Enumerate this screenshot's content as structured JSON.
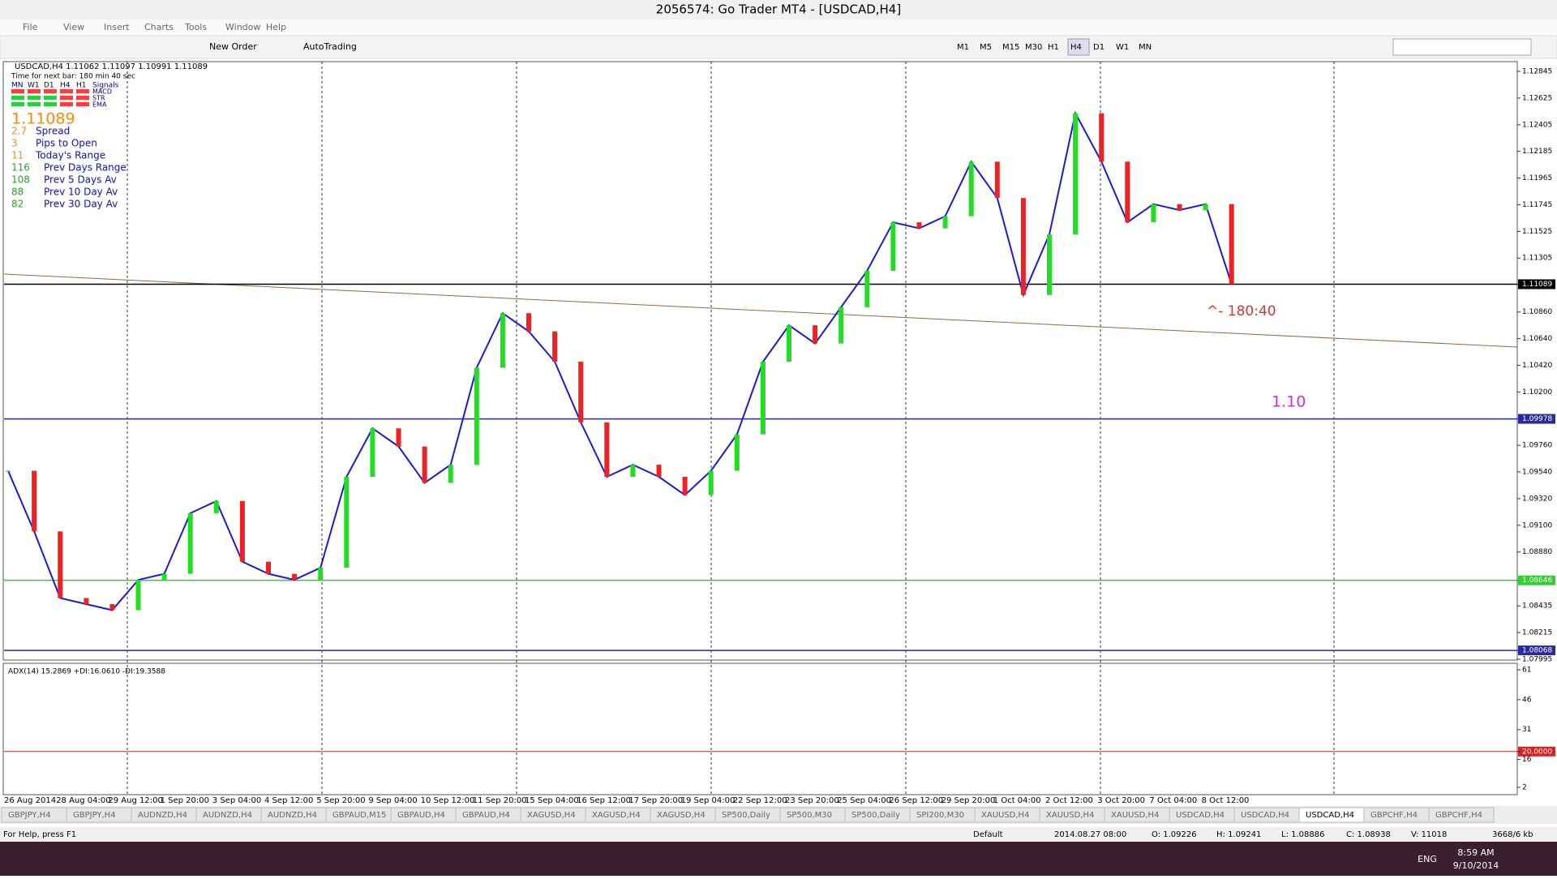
{
  "window": {
    "title": "2056574: Go Trader MT4 - [USDCAD,H4]"
  },
  "menu": [
    "File",
    "View",
    "Insert",
    "Charts",
    "Tools",
    "Window",
    "Help"
  ],
  "toolbar": {
    "new_order": "New Order",
    "autotrading": "AutoTrading",
    "timeframes": [
      "M1",
      "M5",
      "M15",
      "M30",
      "H1",
      "H4",
      "D1",
      "W1",
      "MN"
    ]
  },
  "chart": {
    "symbol_line": "USDCAD,H4  1.11062 1.11097 1.10991 1.11089",
    "timer": "Time for next bar: 180 min 40 sec",
    "signal_header": [
      "MN",
      "W1",
      "D1",
      "H4",
      "H1",
      "Signals"
    ],
    "signal_rows": [
      "MACD",
      "STR",
      "EMA"
    ],
    "price": "1.11089",
    "stats": [
      [
        "2.7",
        "Spread"
      ],
      [
        "3",
        "Pips to Open"
      ],
      [
        "11",
        "Today's Range"
      ],
      [
        "116",
        "Prev Days Range"
      ],
      [
        "108",
        "Prev 5 Days Av"
      ],
      [
        "88",
        "Prev 10 Day Av"
      ],
      [
        "82",
        "Prev 30 Day Av"
      ]
    ],
    "annotation_timer": "^- 180:40",
    "annotation_level": "1.10",
    "price_axis": [
      {
        "value": 1.12845,
        "label": "1.12845"
      },
      {
        "value": 1.12625,
        "label": "1.12625"
      },
      {
        "value": 1.12405,
        "label": "1.12405"
      },
      {
        "value": 1.12185,
        "label": "1.12185"
      },
      {
        "value": 1.11965,
        "label": "1.11965"
      },
      {
        "value": 1.11745,
        "label": "1.11745"
      },
      {
        "value": 1.11525,
        "label": "1.11525"
      },
      {
        "value": 1.11305,
        "label": "1.11305"
      },
      {
        "value": 1.11089,
        "label": "1.11089",
        "line": "#000000"
      },
      {
        "value": 1.1086,
        "label": "1.10860"
      },
      {
        "value": 1.1064,
        "label": "1.10640"
      },
      {
        "value": 1.1042,
        "label": "1.10420"
      },
      {
        "value": 1.102,
        "label": "1.10200"
      },
      {
        "value": 1.09978,
        "label": "1.09978",
        "line": "#2a2aa0"
      },
      {
        "value": 1.0976,
        "label": "1.09760"
      },
      {
        "value": 1.0954,
        "label": "1.09540"
      },
      {
        "value": 1.0932,
        "label": "1.09320"
      },
      {
        "value": 1.091,
        "label": "1.09100"
      },
      {
        "value": 1.0888,
        "label": "1.08880"
      },
      {
        "value": 1.08646,
        "label": "1.08646",
        "line": "#33cc33"
      },
      {
        "value": 1.08435,
        "label": "1.08435"
      },
      {
        "value": 1.08215,
        "label": "1.08215"
      },
      {
        "value": 1.08068,
        "label": "1.08068",
        "line": "#2a2aa0"
      },
      {
        "value": 1.07995,
        "label": "1.07995"
      }
    ],
    "ylim": [
      1.07995,
      1.12845
    ],
    "close_prices": [
      1.0955,
      1.0905,
      1.085,
      1.0845,
      1.084,
      1.0865,
      1.087,
      1.092,
      1.093,
      1.088,
      1.087,
      1.0865,
      1.0875,
      1.095,
      1.099,
      1.0975,
      1.0945,
      1.096,
      1.104,
      1.1085,
      1.107,
      1.1045,
      1.0995,
      1.095,
      1.096,
      1.095,
      1.0935,
      1.0955,
      1.0985,
      1.1045,
      1.1075,
      1.106,
      1.109,
      1.112,
      1.116,
      1.1155,
      1.1165,
      1.121,
      1.118,
      1.11,
      1.115,
      1.125,
      1.121,
      1.116,
      1.1175,
      1.117,
      1.1175,
      1.11089
    ],
    "time_axis": [
      "26 Aug 2014",
      "28 Aug 04:00",
      "29 Aug 12:00",
      "1 Sep 20:00",
      "3 Sep 04:00",
      "4 Sep 12:00",
      "5 Sep 20:00",
      "9 Sep 04:00",
      "10 Sep 12:00",
      "11 Sep 20:00",
      "15 Sep 04:00",
      "16 Sep 12:00",
      "17 Sep 20:00",
      "19 Sep 04:00",
      "22 Sep 12:00",
      "23 Sep 20:00",
      "25 Sep 04:00",
      "26 Sep 12:00",
      "29 Sep 20:00",
      "1 Oct 04:00",
      "2 Oct 12:00",
      "3 Oct 20:00",
      "7 Oct 04:00",
      "8 Oct 12:00"
    ],
    "adx_label": "ADX(14) 15.2869 +DI:16.0610 -DI:19.3588",
    "adx_axis": [
      61,
      46,
      31,
      {
        "value": 20,
        "label": "20.0000"
      },
      16,
      2
    ],
    "adx_ylim": [
      2,
      61
    ]
  },
  "tabs": [
    "GBPJPY,H4",
    "GBPJPY,H4",
    "AUDNZD,H4",
    "AUDNZD,H4",
    "AUDNZD,H4",
    "GBPAUD,M15",
    "GBPAUD,H4",
    "GBPAUD,H4",
    "XAGUSD,H4",
    "XAGUSD,H4",
    "XAGUSD,H4",
    "SP500,Daily",
    "SP500,M30",
    "SP500,Daily",
    "SPI200,M30",
    "XAUUSD,H4",
    "XAUUSD,H4",
    "XAUUSD,H4",
    "USDCAD,H4",
    "USDCAD,H4",
    "USDCAD,H4",
    "GBPCHF,H4",
    "GBPCHF,H4"
  ],
  "active_tab": 20,
  "status": [
    "For Help, press F1",
    "Default",
    "2014.08.27 08:00",
    "O: 1.09226",
    "H: 1.09241",
    "L: 1.08886",
    "C: 1.08938",
    "V: 11018",
    "3668/6 kb"
  ],
  "taskbar": {
    "lang": "ENG",
    "time": "8:59 AM",
    "date": "9/10/2014"
  }
}
